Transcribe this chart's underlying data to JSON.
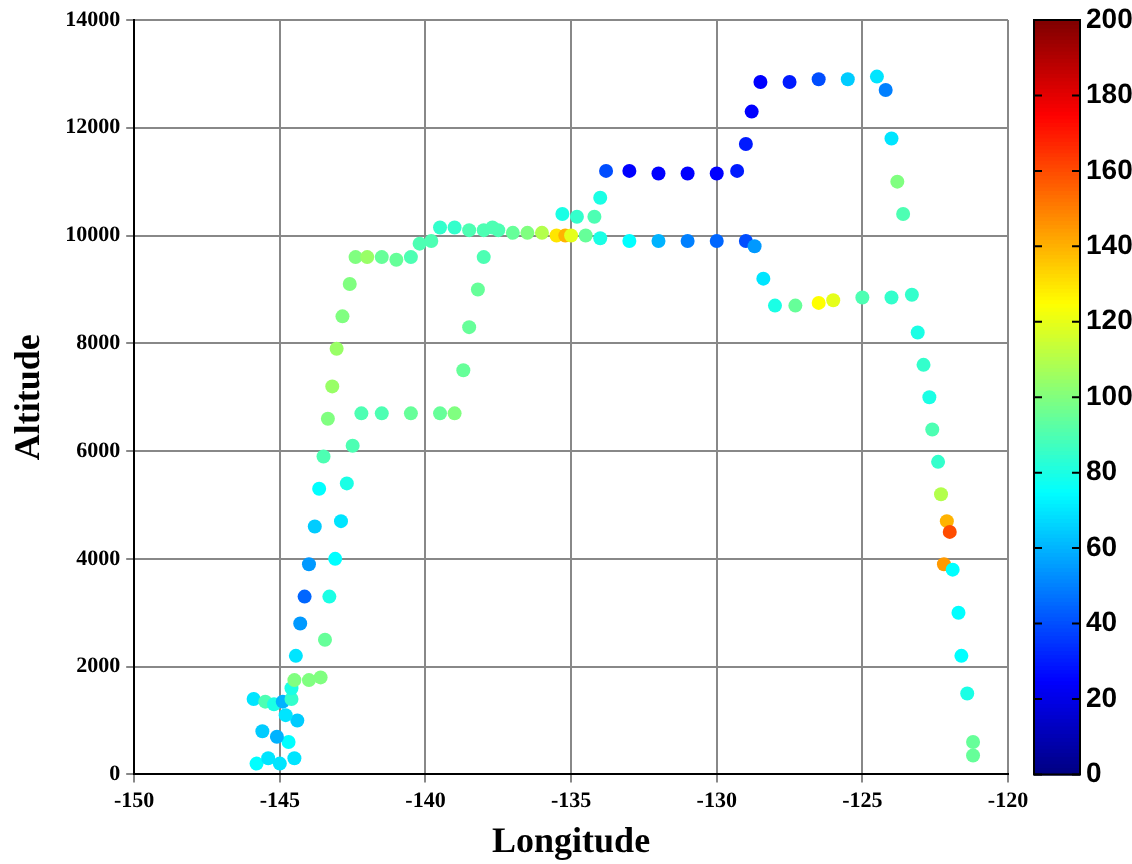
{
  "chart_data": {
    "type": "scatter",
    "xlabel": "Longitude",
    "ylabel": "Altitude",
    "marker": "circle",
    "grid": true,
    "legend": false,
    "xlim": [
      -150,
      -120
    ],
    "xticks": [
      -150,
      -145,
      -140,
      -135,
      -130,
      -125,
      -120
    ],
    "ylim": [
      0,
      14000
    ],
    "yticks": [
      0,
      2000,
      4000,
      6000,
      8000,
      10000,
      12000,
      14000
    ],
    "clim": [
      0,
      200
    ],
    "cticks": [
      0,
      20,
      40,
      60,
      80,
      100,
      120,
      140,
      160,
      180,
      200
    ],
    "x": [
      -145.9,
      -145.8,
      -145.5,
      -145.4,
      -145.2,
      -145.0,
      -144.9,
      -144.7,
      -144.6,
      -144.5,
      -144.4,
      -145.6,
      -145.1,
      -144.8,
      -144.6,
      -144.45,
      -144.3,
      -144.15,
      -144.0,
      -143.8,
      -143.65,
      -143.5,
      -143.35,
      -143.2,
      -143.05,
      -142.85,
      -142.6,
      -142.4,
      -142.0,
      -141.5,
      -141.0,
      -140.5,
      -140.2,
      -139.8,
      -139.5,
      -139.0,
      -138.5,
      -138.0,
      -137.5,
      -137.0,
      -136.5,
      -136.0,
      -135.5,
      -135.2,
      -135.0,
      -144.5,
      -144.0,
      -143.6,
      -143.45,
      -143.3,
      -143.1,
      -142.9,
      -142.7,
      -142.5,
      -142.2,
      -141.5,
      -140.5,
      -139.5,
      -139.0,
      -138.7,
      -138.5,
      -138.2,
      -138.0,
      -137.7,
      -135.3,
      -134.8,
      -134.2,
      -134.0,
      -133.8,
      -133.0,
      -132.0,
      -131.0,
      -130.0,
      -129.3,
      -129.0,
      -128.8,
      -128.5,
      -127.5,
      -126.5,
      -125.5,
      -124.5,
      -124.2,
      -124.0,
      -123.8,
      -123.6,
      -134.5,
      -134.0,
      -133.0,
      -132.0,
      -131.0,
      -130.0,
      -129.0,
      -128.7,
      -128.4,
      -128.0,
      -127.3,
      -126.5,
      -126.0,
      -125.0,
      -124.0,
      -123.3,
      -123.1,
      -122.9,
      -122.7,
      -122.6,
      -122.4,
      -122.3,
      -122.1,
      -122.0,
      -122.2,
      -121.9,
      -121.7,
      -121.6,
      -121.4,
      -121.2,
      -121.2
    ],
    "values": [
      1400,
      200,
      1350,
      300,
      1300,
      200,
      1350,
      600,
      1400,
      300,
      1000,
      800,
      700,
      1100,
      1600,
      2200,
      2800,
      3300,
      3900,
      4600,
      5300,
      5900,
      6600,
      7200,
      7900,
      8500,
      9100,
      9600,
      9600,
      9600,
      9550,
      9600,
      9850,
      9900,
      10150,
      10150,
      10100,
      10100,
      10100,
      10050,
      10050,
      10050,
      10000,
      10000,
      10000,
      1750,
      1750,
      1800,
      2500,
      3300,
      4000,
      4700,
      5400,
      6100,
      6700,
      6700,
      6700,
      6700,
      6700,
      7500,
      8300,
      9000,
      9600,
      10150,
      10400,
      10350,
      10350,
      10700,
      11200,
      11200,
      11150,
      11150,
      11150,
      11200,
      11700,
      12300,
      12850,
      12850,
      12900,
      12900,
      12950,
      12700,
      11800,
      11000,
      10400,
      10000,
      9950,
      9900,
      9900,
      9900,
      9900,
      9900,
      9800,
      9200,
      8700,
      8700,
      8750,
      8800,
      8850,
      8850,
      8900,
      8200,
      7600,
      7000,
      6400,
      5800,
      5200,
      4700,
      4500,
      3900,
      3800,
      3000,
      2200,
      1500,
      600,
      350
    ],
    "cvalues": [
      70,
      75,
      90,
      70,
      80,
      70,
      60,
      75,
      85,
      70,
      65,
      65,
      60,
      70,
      80,
      70,
      55,
      45,
      55,
      65,
      75,
      90,
      100,
      105,
      105,
      100,
      100,
      100,
      105,
      95,
      95,
      90,
      90,
      90,
      85,
      85,
      90,
      90,
      90,
      95,
      100,
      110,
      130,
      140,
      120,
      100,
      100,
      100,
      95,
      80,
      75,
      70,
      80,
      90,
      90,
      90,
      95,
      95,
      100,
      95,
      95,
      95,
      90,
      90,
      80,
      85,
      90,
      80,
      40,
      25,
      25,
      25,
      25,
      30,
      30,
      25,
      25,
      30,
      40,
      65,
      70,
      50,
      70,
      100,
      90,
      95,
      80,
      75,
      60,
      50,
      45,
      40,
      55,
      70,
      80,
      95,
      125,
      120,
      90,
      85,
      85,
      80,
      85,
      80,
      90,
      85,
      110,
      140,
      160,
      145,
      75,
      75,
      75,
      80,
      95,
      95
    ]
  }
}
